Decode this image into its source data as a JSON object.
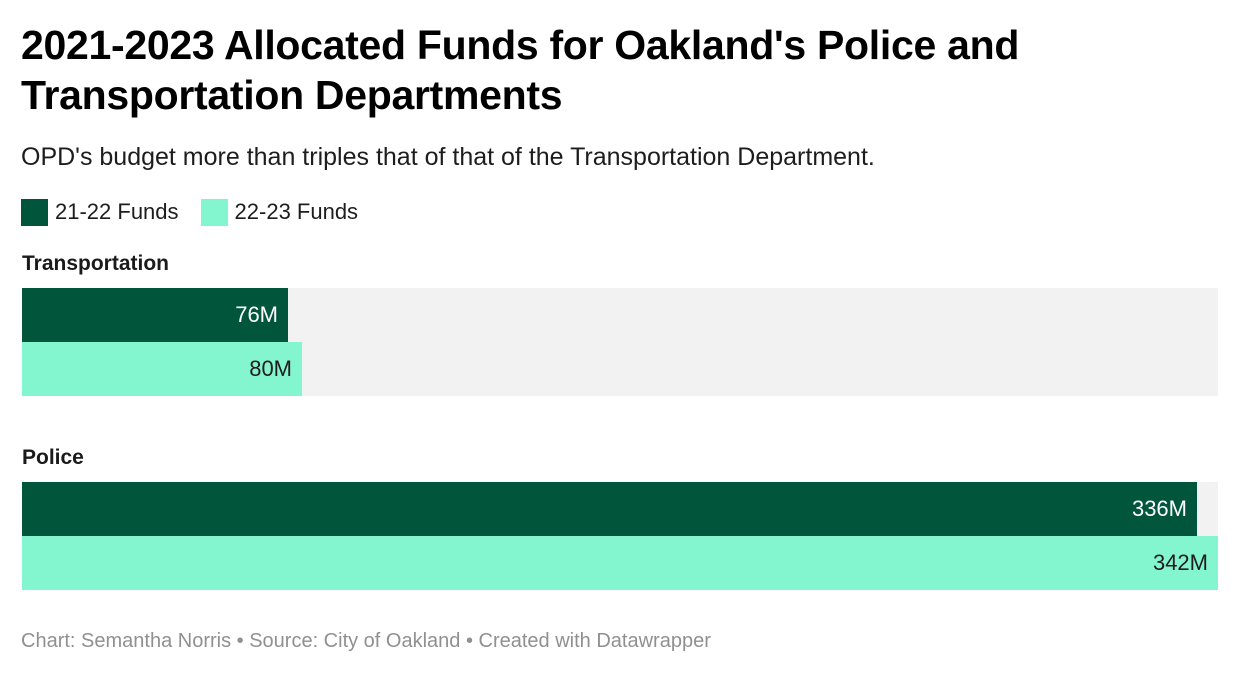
{
  "title": "2021-2023 Allocated Funds for Oakland's Police and Transportation Departments",
  "subtitle": "OPD's budget more than triples that of that of the Transportation Department.",
  "legend": [
    {
      "label": "21-22 Funds",
      "color": "#00553a"
    },
    {
      "label": "22-23 Funds",
      "color": "#83f5cf"
    }
  ],
  "footer": {
    "text": "Chart: Semantha Norris • Source: City of Oakland • Created with Datawrapper"
  },
  "chart_data": {
    "type": "bar",
    "orientation": "horizontal",
    "categories": [
      "Transportation",
      "Police"
    ],
    "series": [
      {
        "name": "21-22 Funds",
        "color": "#00553a",
        "values": [
          76,
          336
        ],
        "labels": [
          "76M",
          "336M"
        ]
      },
      {
        "name": "22-23 Funds",
        "color": "#83f5cf",
        "values": [
          80,
          342
        ],
        "labels": [
          "80M",
          "342M"
        ]
      }
    ],
    "xlim": [
      0,
      342
    ],
    "grid": false,
    "legend_position": "top-left",
    "background_bar_color": "#f2f2f2"
  }
}
